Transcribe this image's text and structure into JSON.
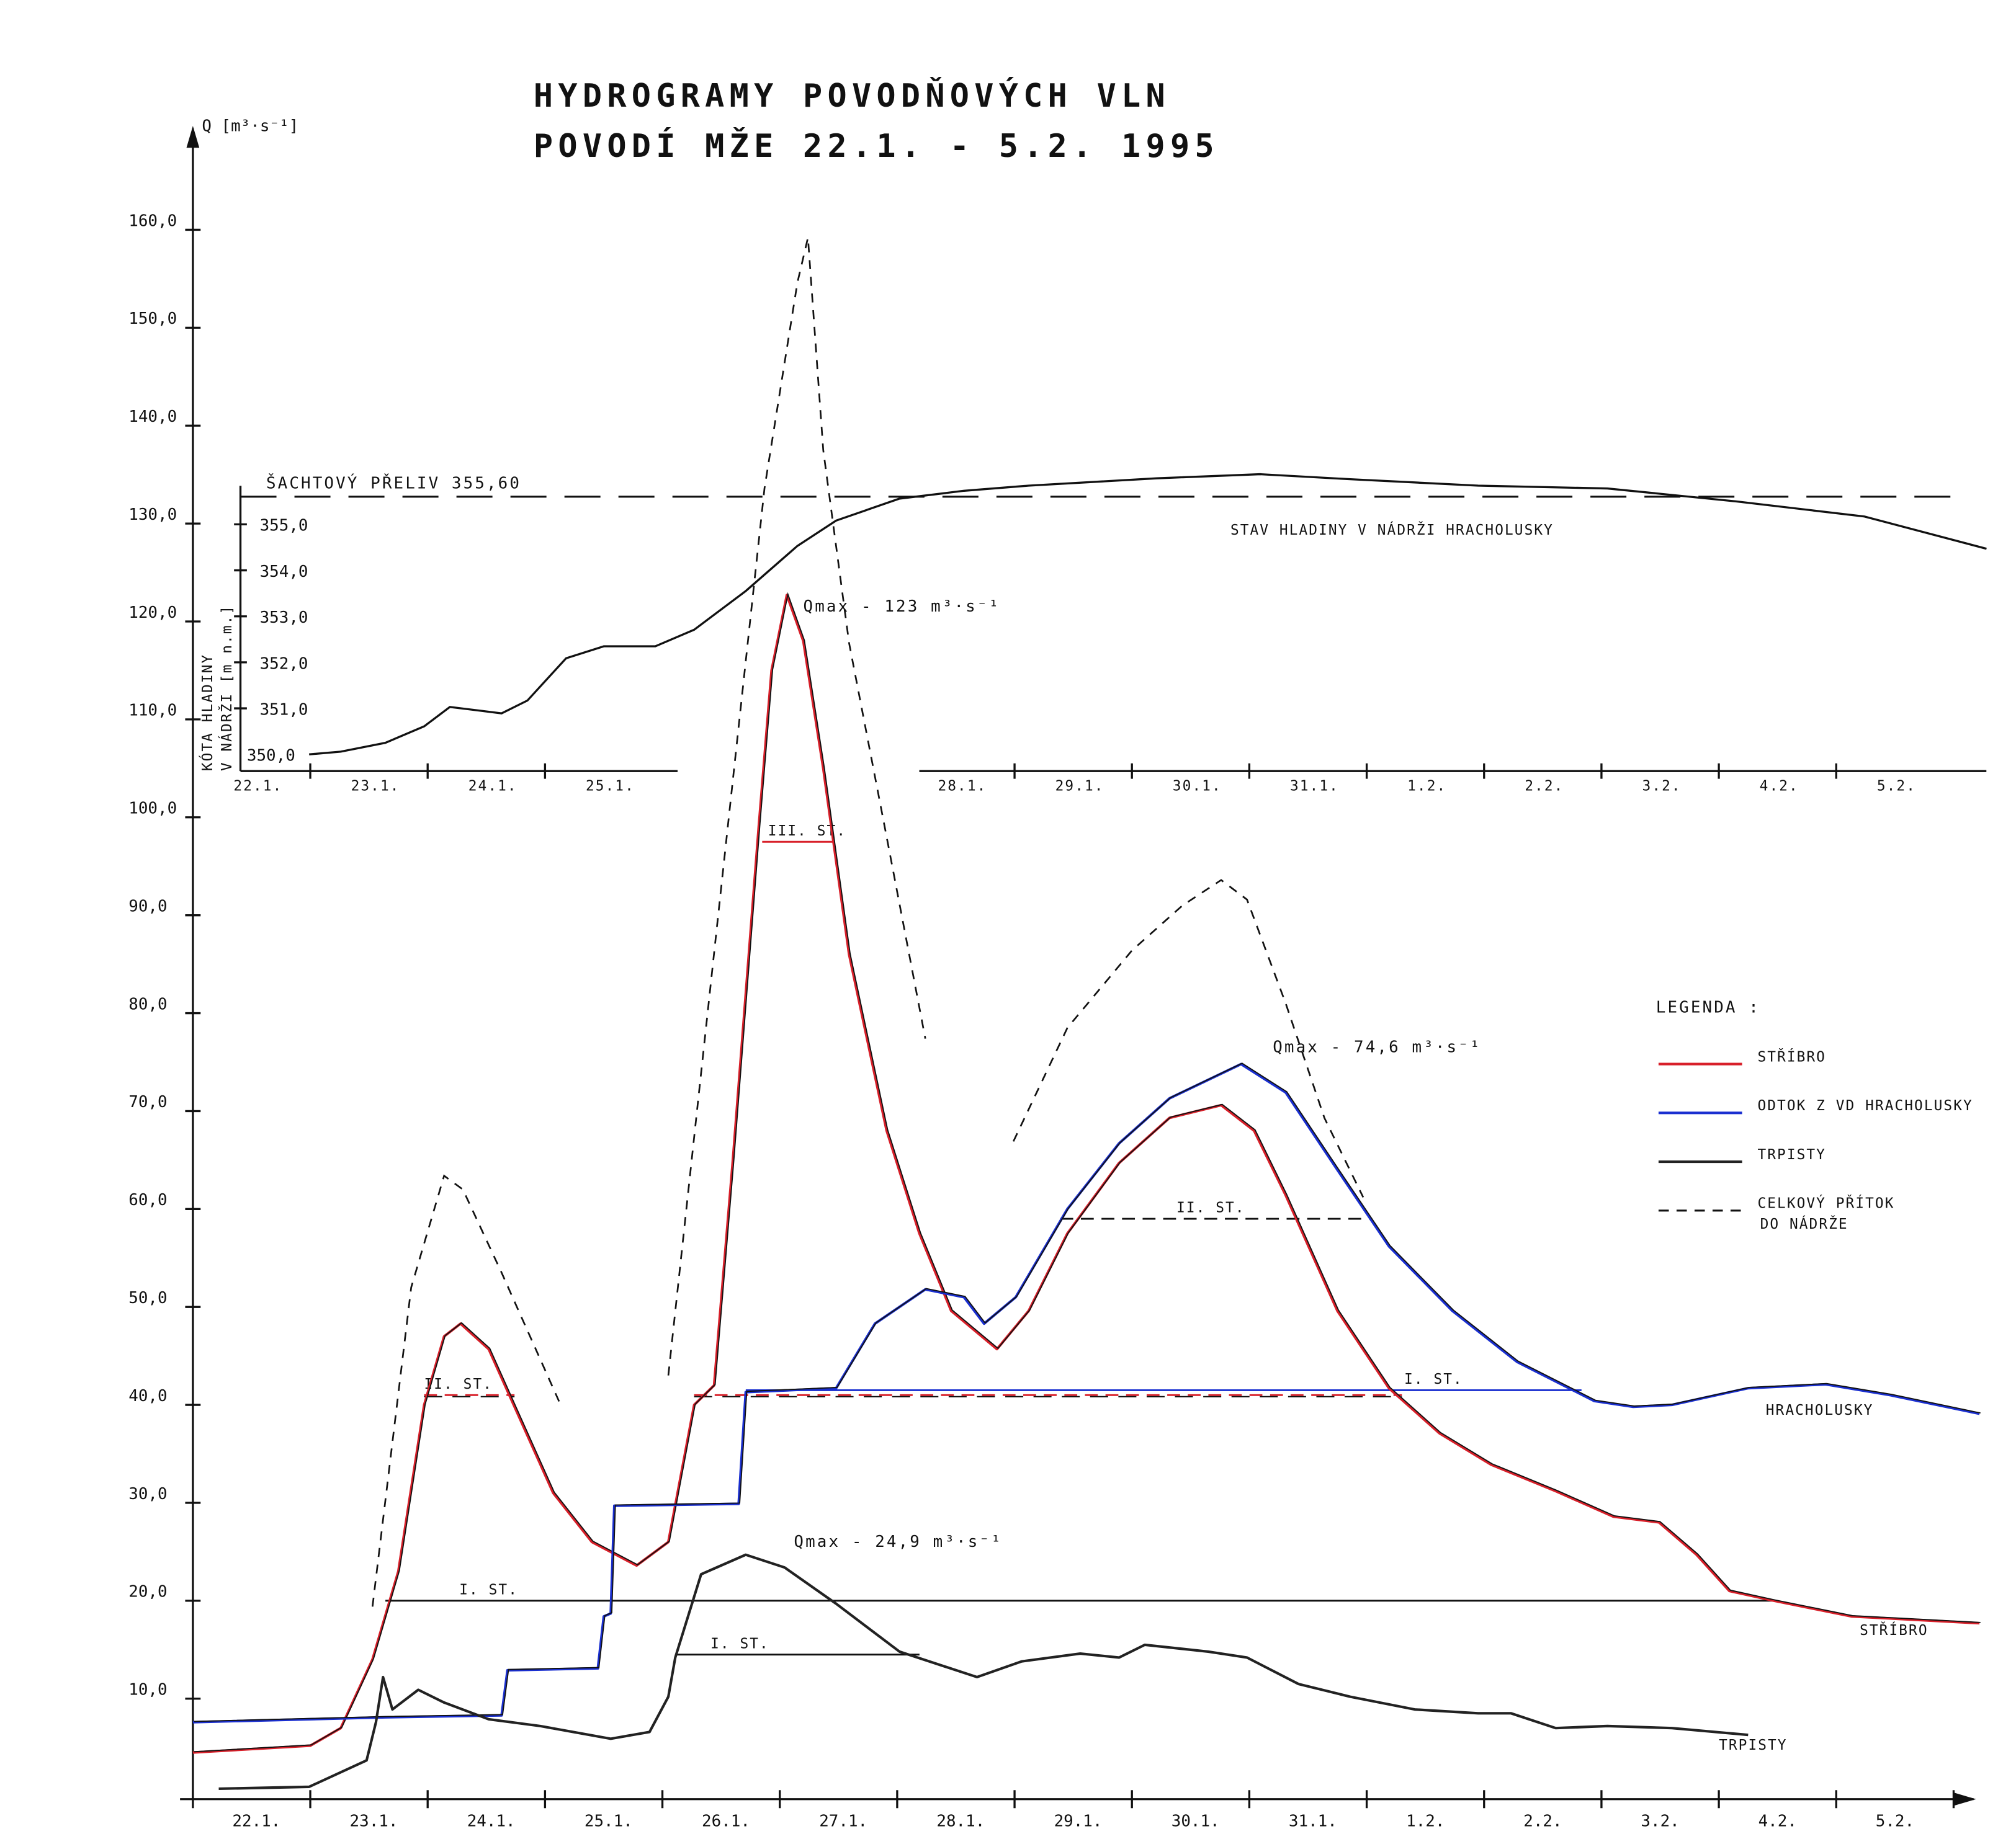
{
  "chart_data": {
    "type": "line",
    "title": [
      "HYDROGRAMY POVODŇOVÝCH VLN",
      "POVODÍ MŽE 22.1. - 5.2. 1995"
    ],
    "ylabel": "Q [m³·s⁻¹]",
    "ylim": [
      0,
      160
    ],
    "yticks": [
      "10,0",
      "20,0",
      "30,0",
      "40,0",
      "50,0",
      "60,0",
      "70,0",
      "80,0",
      "90,0",
      "100,0",
      "110,0",
      "120,0",
      "130,0",
      "140,0",
      "150,0",
      "160,0"
    ],
    "xlabel": "",
    "x_unit": "days since 22.1.1995 00:00",
    "xlim": [
      0,
      15.3
    ],
    "day_labels": [
      "22.1.",
      "23.1.",
      "24.1.",
      "25.1.",
      "26.1.",
      "27.1.",
      "28.1.",
      "29.1.",
      "30.1.",
      "31.1.",
      "1.2.",
      "2.2.",
      "3.2.",
      "4.2.",
      "5.2."
    ],
    "series": [
      {
        "name": "STŘÍBRO",
        "color": "#d8202a",
        "style": "solid",
        "x": [
          0,
          1.0,
          1.26,
          1.53,
          1.75,
          1.97,
          2.14,
          2.28,
          2.52,
          2.74,
          3.07,
          3.4,
          3.78,
          4.05,
          4.27,
          4.44,
          4.6,
          4.82,
          4.93,
          5.06,
          5.2,
          5.37,
          5.59,
          5.91,
          6.19,
          6.46,
          6.85,
          7.12,
          7.45,
          7.89,
          8.32,
          8.76,
          9.04,
          9.31,
          9.75,
          10.19,
          10.62,
          11.06,
          11.61,
          12.1,
          12.49,
          12.81,
          13.09,
          13.47,
          14.13,
          15.22
        ],
        "y": [
          4.5,
          5.2,
          7,
          14,
          23,
          40,
          47,
          48.3,
          45.7,
          39.8,
          31,
          26,
          23.6,
          26,
          40,
          42,
          65,
          99,
          115,
          122.7,
          118,
          105,
          86,
          68,
          57.5,
          49.6,
          45.7,
          49.6,
          57.5,
          64.7,
          69.3,
          70.6,
          68,
          61.4,
          49.6,
          41.7,
          37.1,
          33.9,
          31.2,
          28.6,
          28,
          24.7,
          21,
          20,
          18.4,
          17.7
        ]
      },
      {
        "name": "ODTOK Z VD HRACHOLUSKY",
        "color": "#1a2fd0",
        "style": "solid",
        "x": [
          0,
          1.64,
          2.63,
          2.68,
          3.45,
          3.5,
          3.56,
          3.59,
          4.65,
          4.71,
          5.48,
          5.81,
          6.24,
          6.57,
          6.74,
          7.01,
          7.45,
          7.89,
          8.32,
          8.93,
          9.31,
          9.75,
          10.19,
          10.73,
          11.28,
          11.94,
          12.27,
          12.6,
          13.25,
          13.91,
          14.46,
          15.22
        ],
        "y": [
          7.6,
          8.1,
          8.3,
          12.9,
          13.1,
          18.4,
          18.7,
          29.7,
          29.9,
          41.3,
          41.7,
          48.3,
          51.8,
          51,
          48.3,
          51,
          60,
          66.7,
          71.3,
          74.8,
          71.9,
          64,
          56.2,
          49.6,
          44.4,
          40.4,
          39.8,
          40,
          41.7,
          42.1,
          41,
          39.1
        ]
      },
      {
        "name": "TRPISTY",
        "color": "#222222",
        "style": "solid",
        "x": [
          0.22,
          0.99,
          1.48,
          1.56,
          1.62,
          1.7,
          1.92,
          2.14,
          2.52,
          2.96,
          3.56,
          3.89,
          4.05,
          4.11,
          4.33,
          4.71,
          5.04,
          5.48,
          6.02,
          6.68,
          7.06,
          7.56,
          7.89,
          8.11,
          8.65,
          8.98,
          9.42,
          9.86,
          10.41,
          10.95,
          11.23,
          11.61,
          12.05,
          12.6,
          13.25
        ],
        "y": [
          0.8,
          1,
          3.7,
          7.6,
          12.2,
          8.9,
          10.9,
          9.6,
          7.9,
          7.2,
          5.9,
          6.6,
          10.2,
          14.2,
          22.7,
          24.7,
          23.4,
          19.7,
          14.8,
          12.2,
          13.8,
          14.6,
          14.2,
          15.5,
          14.8,
          14.2,
          11.5,
          10.2,
          8.9,
          8.5,
          8.5,
          7,
          7.2,
          7,
          6.3
        ]
      },
      {
        "name": "CELKOVÝ PŘÍTOK DO NÁDRŽE",
        "color": "#111111",
        "style": "dashed",
        "segments": [
          {
            "x": [
              1.53,
              1.86,
              2.14,
              2.3,
              2.63,
              3.14
            ],
            "y": [
              19.4,
              52,
              63.4,
              62,
              53.5,
              39.8
            ]
          },
          {
            "x": [
              4.05,
              4.49,
              4.87,
              5.15,
              5.24,
              5.37,
              5.59,
              5.91,
              6.24
            ],
            "y": [
              43,
              91.6,
              133.6,
              154.6,
              159.2,
              137.5,
              117.8,
              98,
              77.4
            ]
          },
          {
            "x": [
              6.99,
              7.45,
              8.0,
              8.43,
              8.76,
              8.98,
              9.31,
              9.64,
              9.97
            ],
            "y": [
              66.9,
              78.5,
              86.4,
              91,
              93.6,
              91.6,
              81,
              69.3,
              61.2
            ]
          }
        ]
      }
    ],
    "series_end_labels": [
      {
        "text": "HRACHOLUSKY",
        "x": 13.4,
        "y": 39
      },
      {
        "text": "STŘÍBRO",
        "x": 14.2,
        "y": 16.5
      },
      {
        "text": "TRPISTY",
        "x": 13.0,
        "y": 4.8
      }
    ],
    "thresholds": [
      {
        "label": "I. ST.",
        "value": 20,
        "from": 1.64,
        "to": 13.47,
        "label_x": 2.27,
        "color": "#111111",
        "style": "solid"
      },
      {
        "label": "II. ST.",
        "value": 41,
        "from": 1.97,
        "to": 2.74,
        "label_x": 1.97,
        "color": "#d8202a",
        "style": "dashed"
      },
      {
        "label": "",
        "value": 41,
        "from": 4.27,
        "to": 10.3,
        "label_x": null,
        "color": "#d8202a",
        "style": "dashed"
      },
      {
        "label": "III. ST.",
        "value": 97.5,
        "from": 4.85,
        "to": 5.45,
        "label_x": 4.9,
        "color": "#d8202a",
        "style": "solid"
      },
      {
        "label": "I. ST.",
        "value": 41.5,
        "from": 4.71,
        "to": 11.83,
        "label_x": 10.32,
        "color": "#1a2fd0",
        "style": "solid"
      },
      {
        "label": "II. ST.",
        "value": 59,
        "from": 7.39,
        "to": 10.02,
        "label_x": 8.38,
        "color": "#111111",
        "style": "dashed"
      },
      {
        "label": "I. ST.",
        "value": 14.5,
        "from": 4.11,
        "to": 6.19,
        "label_x": 4.41,
        "color": "#111111",
        "style": "solid"
      }
    ],
    "annotations": [
      {
        "text": "Qmax - 123 m³·s⁻¹",
        "x": 5.2,
        "y": 121
      },
      {
        "text": "Qmax - 74,6 m³·s⁻¹",
        "x": 9.2,
        "y": 76
      },
      {
        "text": "Qmax - 24,9 m³·s⁻¹",
        "x": 5.12,
        "y": 25.5
      }
    ],
    "legend": {
      "title": "LEGENDA :",
      "placement": "right",
      "items": [
        {
          "label": "STŘÍBRO",
          "color": "#d8202a",
          "style": "solid"
        },
        {
          "label": "ODTOK Z VD HRACHOLUSKY",
          "color": "#1a2fd0",
          "style": "solid"
        },
        {
          "label": "TRPISTY",
          "color": "#222222",
          "style": "solid"
        },
        {
          "label": "CELKOVÝ PŘÍTOK",
          "label2": "DO NÁDRŽE",
          "color": "#111111",
          "style": "dashed"
        }
      ]
    },
    "inset": {
      "type": "line",
      "ylabel": [
        "KÓTA HLADINY",
        "V NÁDRŽI [m n.m.]"
      ],
      "ylim": [
        350,
        355.6
      ],
      "yticks": [
        {
          "v": 350,
          "t": "350,0"
        },
        {
          "v": 351,
          "t": "351,0"
        },
        {
          "v": 352,
          "t": "352,0"
        },
        {
          "v": 353,
          "t": "353,0"
        },
        {
          "v": 354,
          "t": "354,0"
        },
        {
          "v": 355,
          "t": "355,0"
        }
      ],
      "day_labels": [
        {
          "i": 0,
          "t": "22.1."
        },
        {
          "i": 1,
          "t": "23.1."
        },
        {
          "i": 2,
          "t": "24.1."
        },
        {
          "i": 3,
          "t": "25.1."
        },
        {
          "i": 6,
          "t": "28.1."
        },
        {
          "i": 7,
          "t": "29.1."
        },
        {
          "i": 8,
          "t": "30.1."
        },
        {
          "i": 9,
          "t": "31.1."
        },
        {
          "i": 10,
          "t": "1.2."
        },
        {
          "i": 11,
          "t": "2.2."
        },
        {
          "i": 12,
          "t": "3.2."
        },
        {
          "i": 13,
          "t": "4.2."
        },
        {
          "i": 14,
          "t": "5.2."
        }
      ],
      "spillway": {
        "label": "ŠACHTOVÝ PŘELIV  355,60",
        "value": 355.6
      },
      "series_label": "STAV HLADINY V NÁDRŽI HRACHOLUSKY",
      "x": [
        0.99,
        1.26,
        1.64,
        1.97,
        2.19,
        2.63,
        2.85,
        3.18,
        3.5,
        3.94,
        4.27,
        4.71,
        5.15,
        5.48,
        6.02,
        6.57,
        7.12,
        8.21,
        9.09,
        9.86,
        10.95,
        12.05,
        13.14,
        14.24,
        15.28
      ],
      "y": [
        350.0,
        350.06,
        350.25,
        350.61,
        351.03,
        350.89,
        351.17,
        352.09,
        352.35,
        352.35,
        352.71,
        353.55,
        354.53,
        355.08,
        355.56,
        355.73,
        355.84,
        356.0,
        356.09,
        355.98,
        355.84,
        355.78,
        355.5,
        355.17,
        354.47
      ]
    }
  }
}
